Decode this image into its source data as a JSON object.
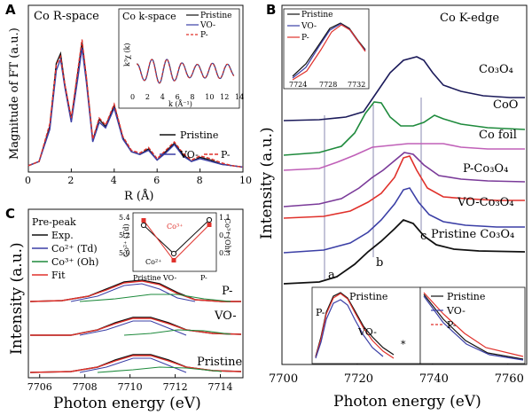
{
  "figure": {
    "colors": {
      "black": "#111111",
      "blue": "#3b3fa6",
      "red": "#e0312b",
      "green": "#1e8a3c",
      "purple": "#7a3a99",
      "magenta": "#c060b8",
      "darkblue": "#1b1a5a",
      "gray": "#8a8ab0"
    }
  },
  "chart_data": [
    {
      "id": "A",
      "panel": "A",
      "type": "line",
      "title": "Co  R-space",
      "xlabel": "R (Å)",
      "ylabel": "Magnitude of FT (a.u.)",
      "xlim": [
        0,
        10
      ],
      "xticks": [
        "0",
        "2",
        "4",
        "6",
        "8",
        "10"
      ],
      "legend": [
        "Pristine",
        "VO-",
        "P-"
      ],
      "series": [
        {
          "name": "Pristine",
          "x": [
            0,
            0.5,
            1.0,
            1.3,
            1.5,
            1.7,
            2.0,
            2.3,
            2.5,
            2.7,
            3.0,
            3.3,
            3.6,
            4.0,
            4.4,
            4.8,
            5.2,
            5.6,
            6.0,
            6.4,
            6.8,
            7.2,
            7.6,
            8.0,
            8.5,
            9.0,
            9.5,
            10
          ],
          "values": [
            0.02,
            0.05,
            0.3,
            0.75,
            0.82,
            0.6,
            0.35,
            0.68,
            0.9,
            0.65,
            0.2,
            0.35,
            0.3,
            0.45,
            0.22,
            0.12,
            0.1,
            0.14,
            0.06,
            0.12,
            0.18,
            0.1,
            0.05,
            0.08,
            0.06,
            0.03,
            0.02,
            0.01
          ]
        },
        {
          "name": "VO-",
          "x": [
            0,
            0.5,
            1.0,
            1.3,
            1.5,
            1.7,
            2.0,
            2.3,
            2.5,
            2.7,
            3.0,
            3.3,
            3.6,
            4.0,
            4.4,
            4.8,
            5.2,
            5.6,
            6.0,
            6.4,
            6.8,
            7.2,
            7.6,
            8.0,
            8.5,
            9.0,
            9.5,
            10
          ],
          "values": [
            0.02,
            0.05,
            0.28,
            0.7,
            0.78,
            0.58,
            0.33,
            0.64,
            0.86,
            0.62,
            0.19,
            0.33,
            0.29,
            0.43,
            0.21,
            0.12,
            0.1,
            0.13,
            0.06,
            0.11,
            0.17,
            0.09,
            0.05,
            0.07,
            0.05,
            0.03,
            0.02,
            0.01
          ]
        },
        {
          "name": "P-",
          "x": [
            0,
            0.5,
            1.0,
            1.3,
            1.5,
            1.7,
            2.0,
            2.3,
            2.5,
            2.7,
            3.0,
            3.3,
            3.6,
            4.0,
            4.4,
            4.8,
            5.2,
            5.6,
            6.0,
            6.4,
            6.8,
            7.2,
            7.6,
            8.0,
            8.5,
            9.0,
            9.5,
            10
          ],
          "values": [
            0.02,
            0.05,
            0.32,
            0.74,
            0.8,
            0.6,
            0.36,
            0.7,
            0.92,
            0.66,
            0.21,
            0.36,
            0.31,
            0.46,
            0.23,
            0.13,
            0.11,
            0.15,
            0.07,
            0.13,
            0.19,
            0.11,
            0.06,
            0.09,
            0.07,
            0.04,
            0.02,
            0.01
          ]
        }
      ],
      "inset": {
        "title": "Co  k-space",
        "xlabel": "k (Å⁻¹)",
        "ylabel": "k³χ (k)",
        "xlim": [
          0,
          14
        ],
        "xticks": [
          "0",
          "2",
          "4",
          "6",
          "8",
          "10",
          "12",
          "14"
        ],
        "legend": [
          "Pristine",
          "VO-",
          "P-"
        ]
      }
    },
    {
      "id": "B",
      "panel": "B",
      "type": "line",
      "title": "Co  K-edge",
      "xlabel": "Photon energy (eV)",
      "ylabel": "Intensity (a.u.)",
      "xlim": [
        7700,
        7765
      ],
      "xticks": [
        "7700",
        "7720",
        "7740",
        "7760"
      ],
      "curve_labels": [
        "Co₃O₄",
        "CoO",
        "Co foil",
        "P-Co₃O₄",
        "VO-Co₃O₄",
        "Pristine Co₃O₄"
      ],
      "feature_labels": [
        "a",
        "b",
        "c"
      ],
      "inset_top": {
        "legend": [
          "Pristine",
          "VO-",
          "P-"
        ],
        "xticks": [
          "7724",
          "7728",
          "7732"
        ]
      },
      "inset_bottom_left": {
        "labels": [
          "Pristine",
          "P-",
          "VO-",
          "*"
        ]
      },
      "inset_bottom_right": {
        "legend": [
          "Pristine",
          "VO-",
          "P-"
        ]
      }
    },
    {
      "id": "C",
      "panel": "C",
      "type": "line",
      "xlabel": "Photon energy (eV)",
      "ylabel": "Intensity (a.u.)",
      "xlim": [
        7705.5,
        7715
      ],
      "xticks": [
        "7706",
        "7708",
        "7710",
        "7712",
        "7714"
      ],
      "legend_title": "Pre-peak",
      "legend": [
        "Exp.",
        "Co²⁺ (Td)",
        "Co³⁺ (Oh)",
        "Fit"
      ],
      "curve_labels": [
        "P-",
        "VO-",
        "Pristine"
      ],
      "inset": {
        "categories": [
          "Pristine",
          "VO-",
          "P-"
        ],
        "left_label": "Co²⁺ (Td)",
        "right_label": "Co³⁺ (Oh)",
        "left_ticks": [
          "5.4",
          "5.2",
          "5.0"
        ],
        "right_ticks": [
          "1.1",
          "0.7",
          "0.3"
        ],
        "co2_values": [
          5.32,
          5.0,
          5.38
        ],
        "co3_values": [
          1.05,
          0.15,
          0.95
        ]
      }
    }
  ]
}
